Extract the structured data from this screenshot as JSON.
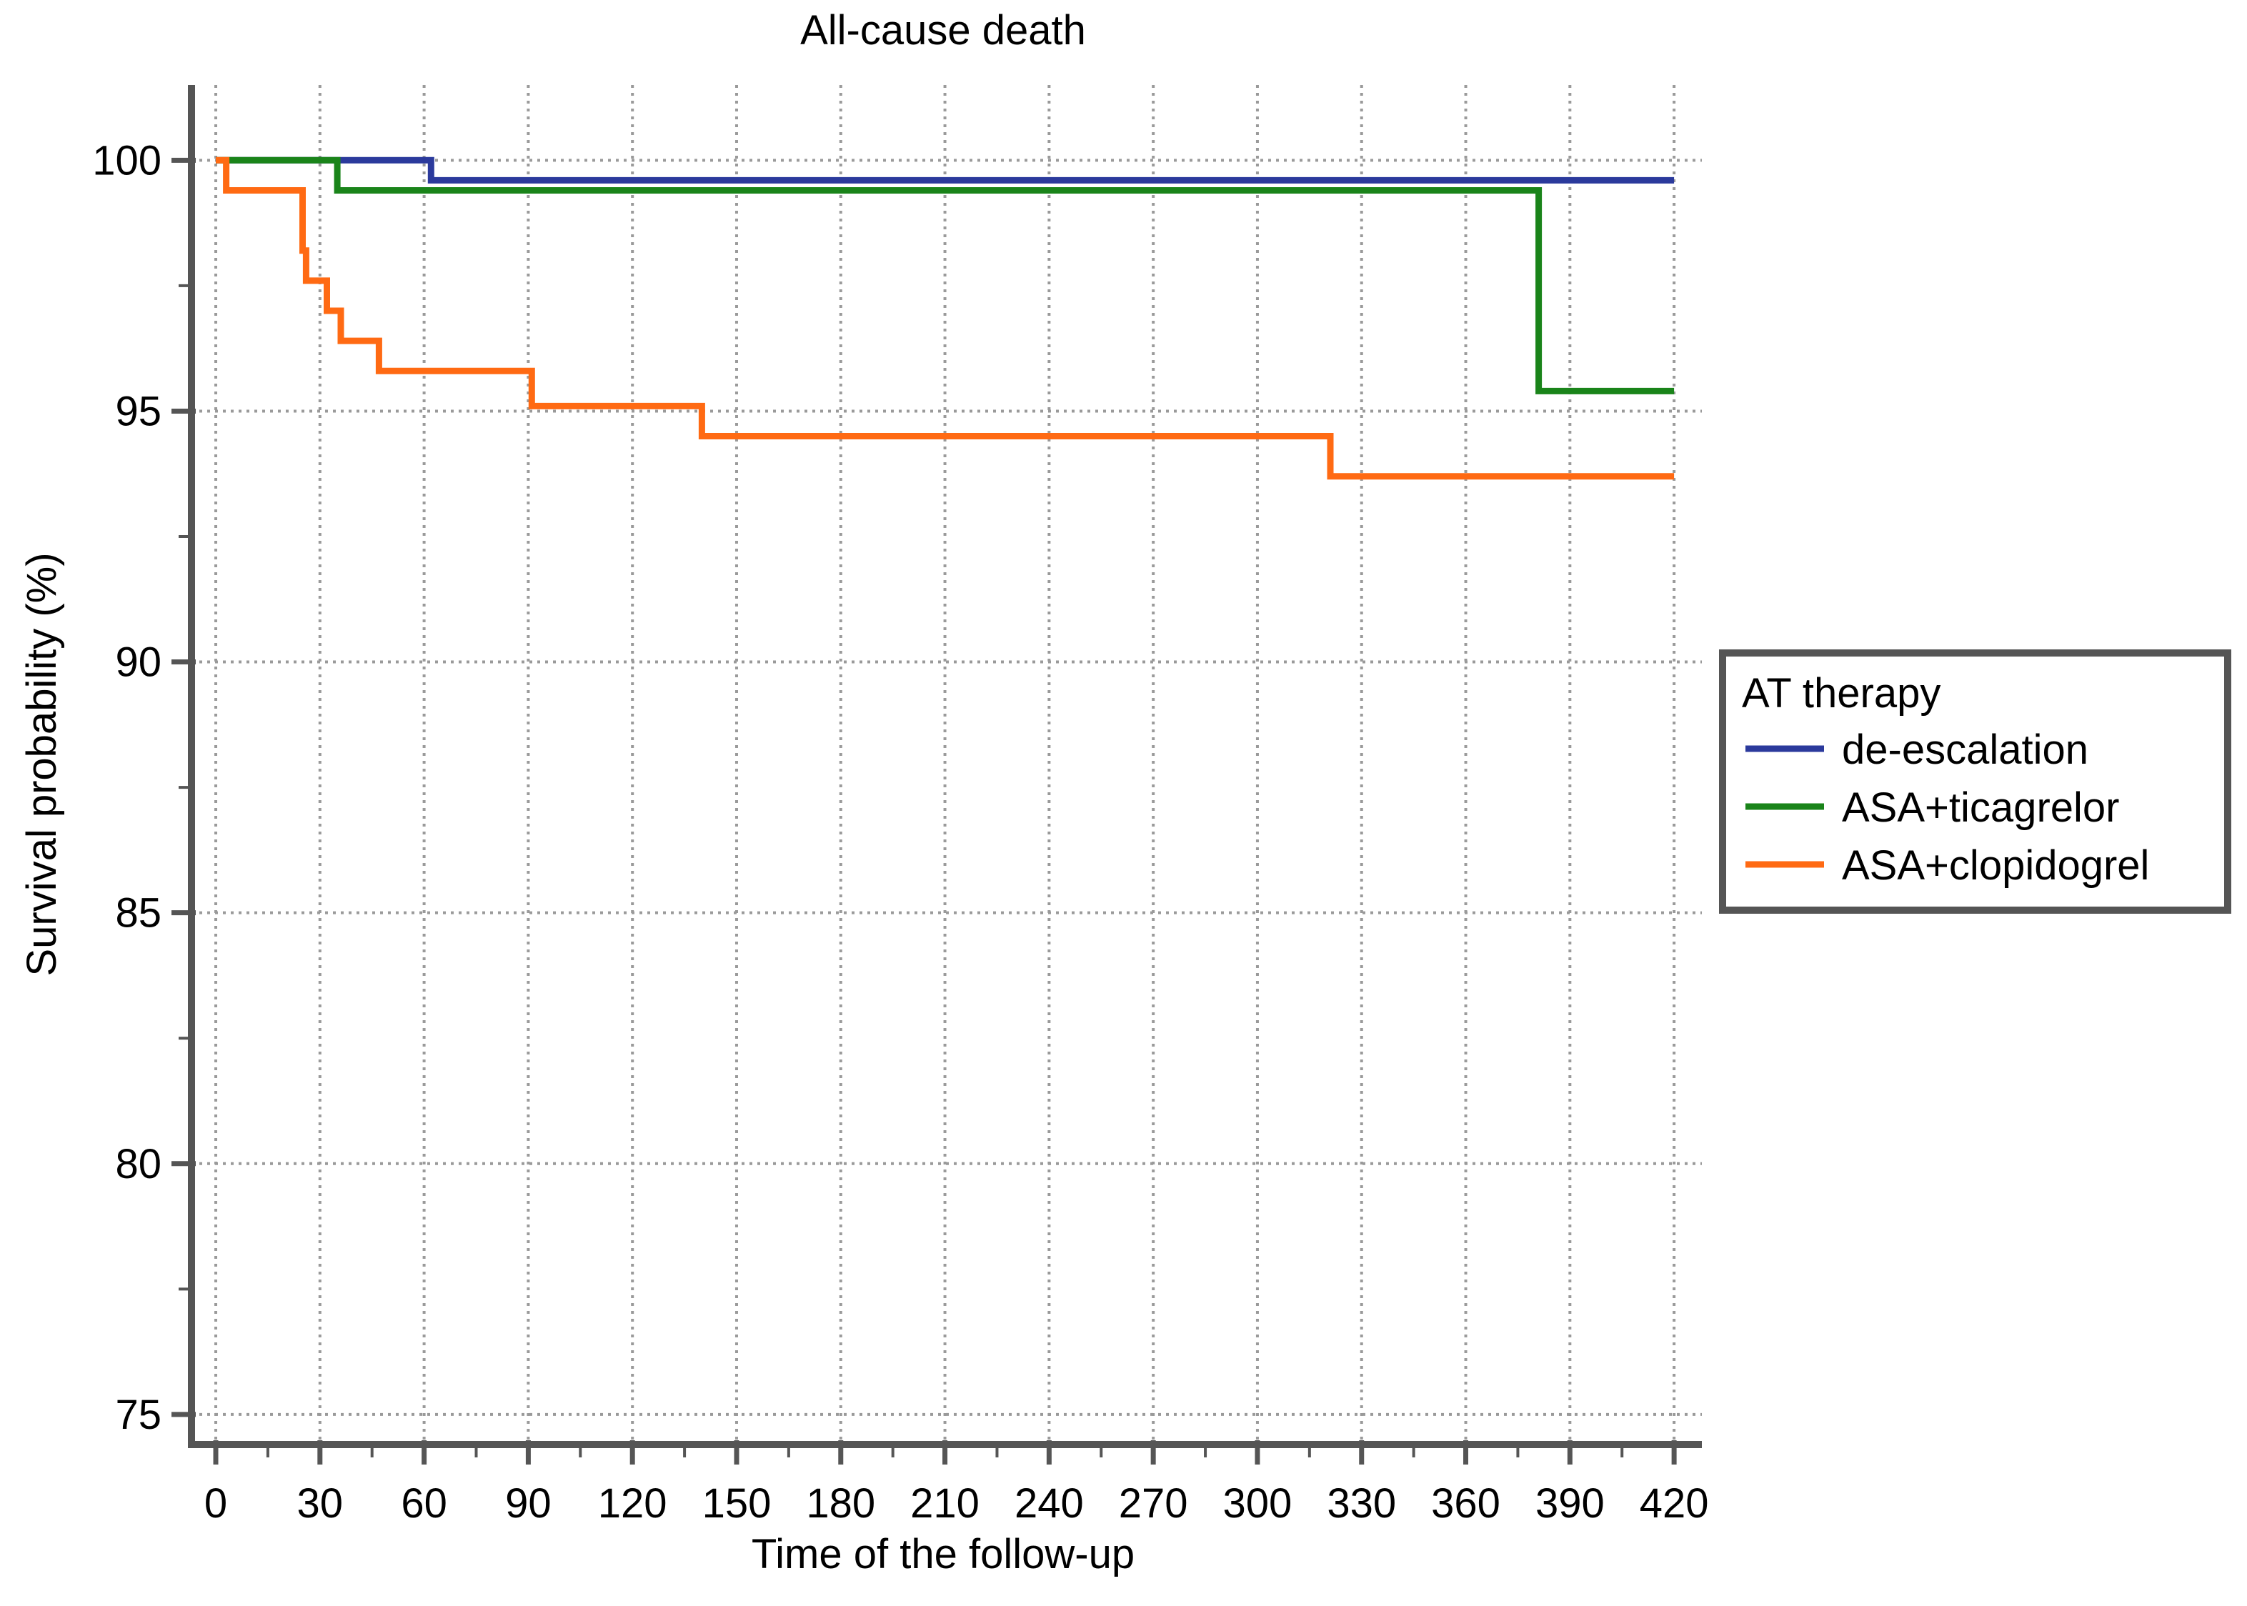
{
  "chart_data": {
    "type": "line",
    "step": true,
    "title": "All-cause death",
    "xlabel": "Time of the follow-up",
    "ylabel": "Survival probability (%)",
    "xlim": [
      -7,
      428
    ],
    "ylim": [
      74.4,
      101.5
    ],
    "x_ticks": [
      0,
      30,
      60,
      90,
      120,
      150,
      180,
      210,
      240,
      270,
      300,
      330,
      360,
      390,
      420
    ],
    "y_ticks": [
      75,
      80,
      85,
      90,
      95,
      100
    ],
    "grid": true,
    "legend": {
      "title": "AT therapy",
      "position": "right"
    },
    "series": [
      {
        "name": "de-escalation",
        "color": "#2b3a9c",
        "points": [
          [
            0,
            100
          ],
          [
            62,
            100
          ],
          [
            62,
            99.6
          ],
          [
            420,
            99.6
          ]
        ]
      },
      {
        "name": "ASA+ticagrelor",
        "color": "#1a841a",
        "points": [
          [
            0,
            100
          ],
          [
            35,
            100
          ],
          [
            35,
            99.4
          ],
          [
            381,
            99.4
          ],
          [
            381,
            95.4
          ],
          [
            420,
            95.4
          ]
        ]
      },
      {
        "name": "ASA+clopidogrel",
        "color": "#ff6a13",
        "points": [
          [
            0,
            100
          ],
          [
            3,
            100
          ],
          [
            3,
            99.4
          ],
          [
            25,
            99.4
          ],
          [
            25,
            98.2
          ],
          [
            26,
            98.2
          ],
          [
            26,
            97.6
          ],
          [
            32,
            97.6
          ],
          [
            32,
            97.0
          ],
          [
            36,
            97.0
          ],
          [
            36,
            96.4
          ],
          [
            47,
            96.4
          ],
          [
            47,
            95.8
          ],
          [
            91,
            95.8
          ],
          [
            91,
            95.1
          ],
          [
            140,
            95.1
          ],
          [
            140,
            94.5
          ],
          [
            321,
            94.5
          ],
          [
            321,
            93.7
          ],
          [
            420,
            93.7
          ]
        ]
      }
    ]
  }
}
